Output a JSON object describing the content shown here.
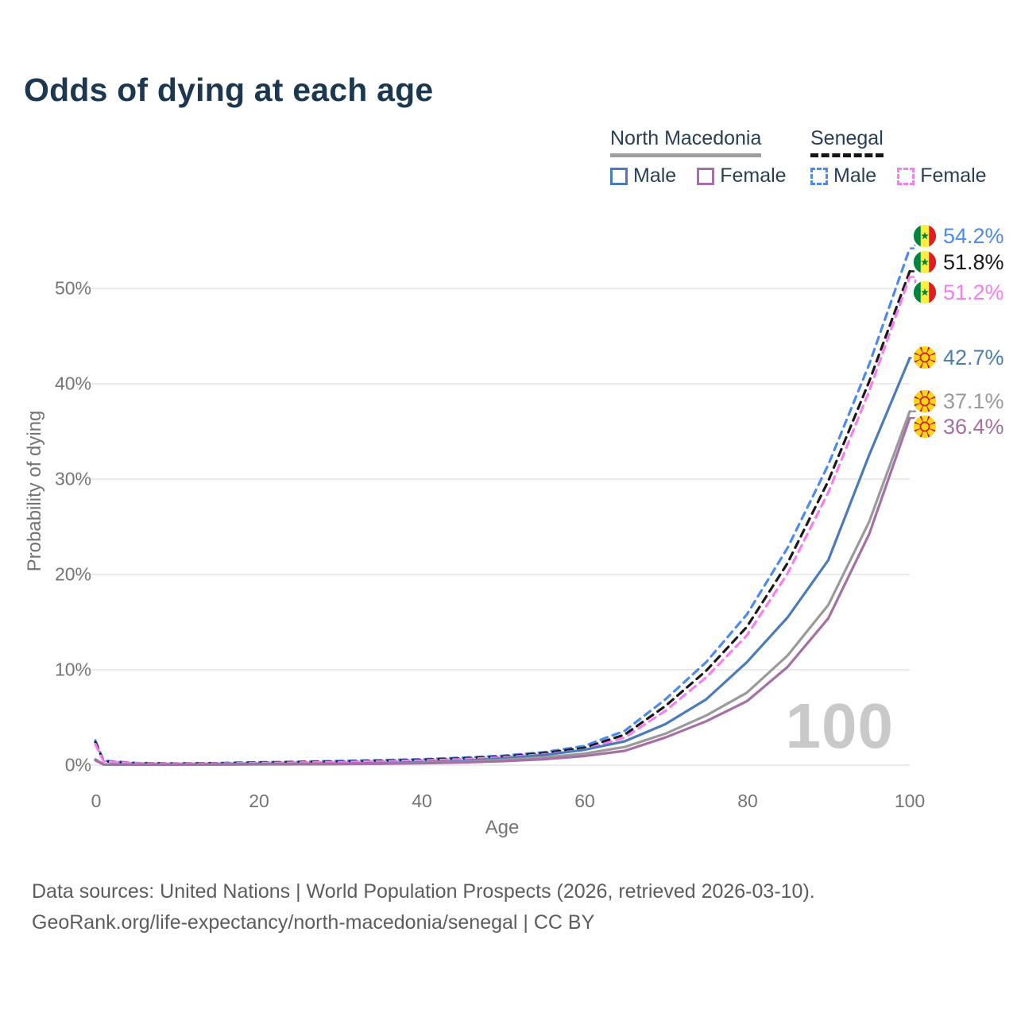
{
  "title": "Odds of dying at each age",
  "legend": {
    "groups": [
      {
        "label": "North Macedonia",
        "line_style": "solid",
        "underline_color": "#9e9e9e",
        "items": [
          {
            "label": "Male",
            "color": "#4b7cb8"
          },
          {
            "label": "Female",
            "color": "#a66fa6"
          }
        ]
      },
      {
        "label": "Senegal",
        "line_style": "dashed",
        "underline_color": "#151515",
        "items": [
          {
            "label": "Male",
            "color": "#4d8af0"
          },
          {
            "label": "Female",
            "color": "#fa7cf3"
          }
        ]
      }
    ]
  },
  "axes": {
    "y": {
      "title": "Probability of dying",
      "ticks": [
        "50%",
        "40%",
        "30%",
        "20%",
        "10%",
        "0%"
      ]
    },
    "x": {
      "title": "Age",
      "ticks": [
        "0",
        "20",
        "40",
        "60",
        "80",
        "100"
      ]
    }
  },
  "watermark": "100",
  "end_labels": [
    {
      "value": "54.2%",
      "color": "#4d8af0",
      "flag": "senegal"
    },
    {
      "value": "51.8%",
      "color": "#1a1a1a",
      "flag": "senegal"
    },
    {
      "value": "51.2%",
      "color": "#fa7cf3",
      "flag": "senegal"
    },
    {
      "value": "42.7%",
      "color": "#4b7cb8",
      "flag": "north-macedonia"
    },
    {
      "value": "37.1%",
      "color": "#9a9a9a",
      "flag": "north-macedonia"
    },
    {
      "value": "36.4%",
      "color": "#a66fa6",
      "flag": "north-macedonia"
    }
  ],
  "chart_data": {
    "type": "line",
    "title": "Odds of dying at each age",
    "xlabel": "Age",
    "ylabel": "Probability of dying",
    "xlim": [
      0,
      100
    ],
    "ylim_percent": [
      0,
      56
    ],
    "grid": "horizontal",
    "legend_position": "top-right",
    "x": [
      0,
      1,
      5,
      10,
      15,
      20,
      25,
      30,
      35,
      40,
      45,
      50,
      55,
      60,
      65,
      70,
      75,
      80,
      85,
      90,
      95,
      100
    ],
    "series": [
      {
        "name": "Senegal Male",
        "country": "Senegal",
        "sex": "Male",
        "color": "#4d8af0",
        "dashed": true,
        "end_value_percent": 54.2,
        "values": [
          2.6,
          0.45,
          0.22,
          0.18,
          0.22,
          0.3,
          0.36,
          0.44,
          0.52,
          0.62,
          0.78,
          0.98,
          1.35,
          2.0,
          3.6,
          6.9,
          10.8,
          15.8,
          22.8,
          31.5,
          42.0,
          54.2
        ]
      },
      {
        "name": "Senegal Both sexes",
        "country": "Senegal",
        "sex": "Both",
        "color": "#1a1a1a",
        "dashed": true,
        "end_value_percent": 51.8,
        "values": [
          2.4,
          0.42,
          0.2,
          0.16,
          0.19,
          0.26,
          0.31,
          0.37,
          0.45,
          0.55,
          0.7,
          0.9,
          1.25,
          1.8,
          3.2,
          6.2,
          9.9,
          14.5,
          21.2,
          29.8,
          40.2,
          51.8
        ]
      },
      {
        "name": "Senegal Female",
        "country": "Senegal",
        "sex": "Female",
        "color": "#fa7cf3",
        "dashed": true,
        "end_value_percent": 51.2,
        "values": [
          2.2,
          0.4,
          0.19,
          0.15,
          0.17,
          0.22,
          0.27,
          0.32,
          0.39,
          0.48,
          0.62,
          0.82,
          1.12,
          1.6,
          2.9,
          5.7,
          9.2,
          13.6,
          20.1,
          28.6,
          39.2,
          51.2
        ]
      },
      {
        "name": "North Macedonia Male",
        "country": "North Macedonia",
        "sex": "Male",
        "color": "#4b7cb8",
        "dashed": false,
        "end_value_percent": 42.7,
        "values": [
          0.6,
          0.08,
          0.05,
          0.05,
          0.08,
          0.11,
          0.13,
          0.16,
          0.22,
          0.3,
          0.45,
          0.7,
          1.05,
          1.6,
          2.5,
          4.3,
          6.9,
          10.8,
          15.5,
          21.5,
          32.5,
          42.7
        ]
      },
      {
        "name": "North Macedonia Both sexes",
        "country": "North Macedonia",
        "sex": "Both",
        "color": "#9a9a9a",
        "dashed": false,
        "end_value_percent": 37.1,
        "values": [
          0.55,
          0.07,
          0.05,
          0.05,
          0.07,
          0.09,
          0.11,
          0.13,
          0.17,
          0.24,
          0.36,
          0.55,
          0.8,
          1.2,
          1.9,
          3.3,
          5.2,
          7.6,
          11.5,
          16.8,
          25.5,
          37.1
        ]
      },
      {
        "name": "North Macedonia Female",
        "country": "North Macedonia",
        "sex": "Female",
        "color": "#a66fa6",
        "dashed": false,
        "end_value_percent": 36.4,
        "values": [
          0.5,
          0.06,
          0.04,
          0.04,
          0.06,
          0.08,
          0.09,
          0.11,
          0.14,
          0.19,
          0.28,
          0.42,
          0.62,
          0.95,
          1.5,
          2.9,
          4.6,
          6.7,
          10.3,
          15.4,
          24.2,
          36.4
        ]
      }
    ]
  },
  "footer": {
    "line1": "Data sources: United Nations | World Population Prospects (2026, retrieved 2026-03-10).",
    "line2": "GeoRank.org/life-expectancy/north-macedonia/senegal | CC BY"
  }
}
